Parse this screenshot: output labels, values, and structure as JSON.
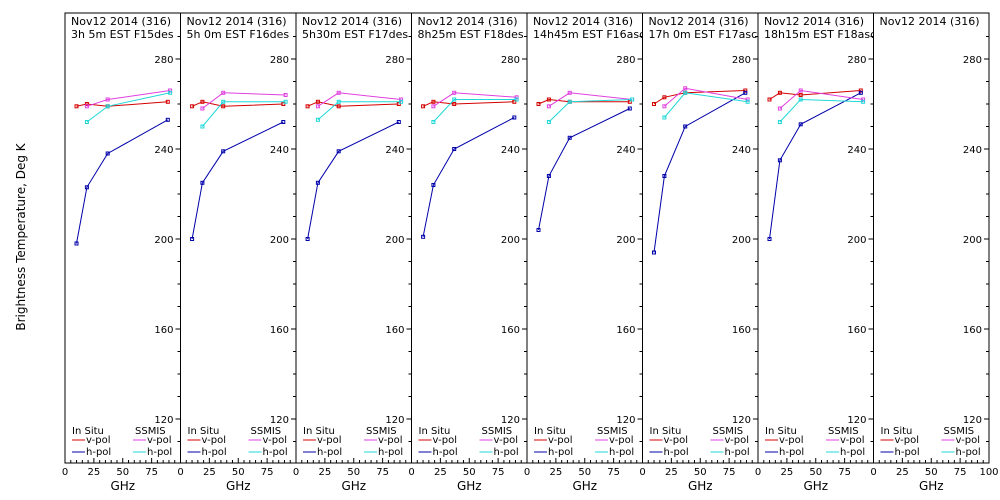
{
  "figure": {
    "ylabel": "Brightness Temperature, Deg K",
    "xlabel": "GHz"
  },
  "legend": {
    "in_situ": "In Situ",
    "ssmis": "SSMIS",
    "v_pol": "v-pol",
    "h_pol": "h-pol"
  },
  "colors": {
    "insitu_v": "#d40000",
    "insitu_h": "#0000aa",
    "ssmis_v": "#e040e0",
    "ssmis_h": "#20d8d8",
    "frame": "#000000"
  },
  "chart_data": [
    {
      "type": "line",
      "title_line1": "Nov12 2014 (316)",
      "title_line2": "3h 5m  EST F15des",
      "x": [
        10,
        19,
        37,
        85
      ],
      "xlim": [
        0,
        100
      ],
      "ylim": [
        100,
        290
      ],
      "x_ticks": [
        0,
        25,
        50,
        75,
        100
      ],
      "y_ticks": [
        120,
        160,
        200,
        240,
        280
      ],
      "xlabel": "GHz",
      "series": [
        {
          "name": "In Situ v-pol",
          "x": [
            10,
            19,
            37,
            89
          ],
          "values": [
            259,
            260,
            259,
            261
          ]
        },
        {
          "name": "In Situ h-pol",
          "x": [
            10,
            19,
            37,
            89
          ],
          "values": [
            198,
            223,
            238,
            253
          ]
        },
        {
          "name": "SSMIS v-pol",
          "x": [
            19,
            37,
            91
          ],
          "values": [
            259,
            262,
            266
          ]
        },
        {
          "name": "SSMIS h-pol",
          "x": [
            19,
            37,
            91
          ],
          "values": [
            252,
            259,
            265
          ]
        }
      ]
    },
    {
      "type": "line",
      "title_line1": "Nov12 2014 (316)",
      "title_line2": "5h 0m  EST F16des",
      "x": [
        10,
        19,
        37,
        85
      ],
      "xlim": [
        0,
        100
      ],
      "ylim": [
        100,
        290
      ],
      "x_ticks": [
        0,
        25,
        50,
        75,
        100
      ],
      "y_ticks": [
        120,
        160,
        200,
        240,
        280
      ],
      "xlabel": "GHz",
      "series": [
        {
          "name": "In Situ v-pol",
          "x": [
            10,
            19,
            37,
            89
          ],
          "values": [
            259,
            261,
            259,
            260
          ]
        },
        {
          "name": "In Situ h-pol",
          "x": [
            10,
            19,
            37,
            89
          ],
          "values": [
            200,
            225,
            239,
            252
          ]
        },
        {
          "name": "SSMIS v-pol",
          "x": [
            19,
            37,
            91
          ],
          "values": [
            258,
            265,
            264
          ]
        },
        {
          "name": "SSMIS h-pol",
          "x": [
            19,
            37,
            91
          ],
          "values": [
            250,
            261,
            261
          ]
        }
      ]
    },
    {
      "type": "line",
      "title_line1": "Nov12 2014 (316)",
      "title_line2": "5h30m  EST F17des",
      "x": [
        10,
        19,
        37,
        85
      ],
      "xlim": [
        0,
        100
      ],
      "ylim": [
        100,
        290
      ],
      "x_ticks": [
        0,
        25,
        50,
        75,
        100
      ],
      "y_ticks": [
        120,
        160,
        200,
        240,
        280
      ],
      "xlabel": "GHz",
      "series": [
        {
          "name": "In Situ v-pol",
          "x": [
            10,
            19,
            37,
            89
          ],
          "values": [
            259,
            261,
            259,
            260
          ]
        },
        {
          "name": "In Situ h-pol",
          "x": [
            10,
            19,
            37,
            89
          ],
          "values": [
            200,
            225,
            239,
            252
          ]
        },
        {
          "name": "SSMIS v-pol",
          "x": [
            19,
            37,
            91
          ],
          "values": [
            259,
            265,
            262
          ]
        },
        {
          "name": "SSMIS h-pol",
          "x": [
            19,
            37,
            91
          ],
          "values": [
            253,
            261,
            261
          ]
        }
      ]
    },
    {
      "type": "line",
      "title_line1": "Nov12 2014 (316)",
      "title_line2": "8h25m  EST F18des",
      "x": [
        10,
        19,
        37,
        85
      ],
      "xlim": [
        0,
        100
      ],
      "ylim": [
        100,
        290
      ],
      "x_ticks": [
        0,
        25,
        50,
        75,
        100
      ],
      "y_ticks": [
        120,
        160,
        200,
        240,
        280
      ],
      "xlabel": "GHz",
      "series": [
        {
          "name": "In Situ v-pol",
          "x": [
            10,
            19,
            37,
            89
          ],
          "values": [
            259,
            261,
            260,
            261
          ]
        },
        {
          "name": "In Situ h-pol",
          "x": [
            10,
            19,
            37,
            89
          ],
          "values": [
            201,
            224,
            240,
            254
          ]
        },
        {
          "name": "SSMIS v-pol",
          "x": [
            19,
            37,
            91
          ],
          "values": [
            259,
            265,
            263
          ]
        },
        {
          "name": "SSMIS h-pol",
          "x": [
            19,
            37,
            91
          ],
          "values": [
            252,
            262,
            262
          ]
        }
      ]
    },
    {
      "type": "line",
      "title_line1": "Nov12 2014 (316)",
      "title_line2": "14h45m  EST F16asc",
      "x": [
        10,
        19,
        37,
        85
      ],
      "xlim": [
        0,
        100
      ],
      "ylim": [
        100,
        290
      ],
      "x_ticks": [
        0,
        25,
        50,
        75,
        100
      ],
      "y_ticks": [
        120,
        160,
        200,
        240,
        280
      ],
      "xlabel": "GHz",
      "series": [
        {
          "name": "In Situ v-pol",
          "x": [
            10,
            19,
            37,
            89
          ],
          "values": [
            260,
            262,
            261,
            261
          ]
        },
        {
          "name": "In Situ h-pol",
          "x": [
            10,
            19,
            37,
            89
          ],
          "values": [
            204,
            228,
            245,
            258
          ]
        },
        {
          "name": "SSMIS v-pol",
          "x": [
            19,
            37,
            91
          ],
          "values": [
            259,
            265,
            262
          ]
        },
        {
          "name": "SSMIS h-pol",
          "x": [
            19,
            37,
            91
          ],
          "values": [
            252,
            261,
            262
          ]
        }
      ]
    },
    {
      "type": "line",
      "title_line1": "Nov12 2014 (316)",
      "title_line2": "17h 0m  EST F17asc",
      "x": [
        10,
        19,
        37,
        85
      ],
      "xlim": [
        0,
        100
      ],
      "ylim": [
        100,
        290
      ],
      "x_ticks": [
        0,
        25,
        50,
        75,
        100
      ],
      "y_ticks": [
        120,
        160,
        200,
        240,
        280
      ],
      "xlabel": "GHz",
      "series": [
        {
          "name": "In Situ v-pol",
          "x": [
            10,
            19,
            37,
            89
          ],
          "values": [
            260,
            263,
            265,
            266
          ]
        },
        {
          "name": "In Situ h-pol",
          "x": [
            10,
            19,
            37,
            89
          ],
          "values": [
            194,
            228,
            250,
            265
          ]
        },
        {
          "name": "SSMIS v-pol",
          "x": [
            19,
            37,
            91
          ],
          "values": [
            259,
            267,
            262
          ]
        },
        {
          "name": "SSMIS h-pol",
          "x": [
            19,
            37,
            91
          ],
          "values": [
            254,
            265,
            261
          ]
        }
      ]
    },
    {
      "type": "line",
      "title_line1": "Nov12 2014 (316)",
      "title_line2": "18h15m  EST F18asc",
      "x": [
        10,
        19,
        37,
        85
      ],
      "xlim": [
        0,
        100
      ],
      "ylim": [
        100,
        290
      ],
      "x_ticks": [
        0,
        25,
        50,
        75,
        100
      ],
      "y_ticks": [
        120,
        160,
        200,
        240,
        280
      ],
      "xlabel": "GHz",
      "series": [
        {
          "name": "In Situ v-pol",
          "x": [
            10,
            19,
            37,
            89
          ],
          "values": [
            262,
            265,
            264,
            266
          ]
        },
        {
          "name": "In Situ h-pol",
          "x": [
            10,
            19,
            37,
            89
          ],
          "values": [
            200,
            235,
            251,
            265
          ]
        },
        {
          "name": "SSMIS v-pol",
          "x": [
            19,
            37,
            91
          ],
          "values": [
            258,
            266,
            262
          ]
        },
        {
          "name": "SSMIS h-pol",
          "x": [
            19,
            37,
            91
          ],
          "values": [
            252,
            262,
            261
          ]
        }
      ]
    },
    {
      "type": "line",
      "title_line1": "Nov12 2014 (316)",
      "title_line2": "",
      "x": [],
      "xlim": [
        0,
        100
      ],
      "ylim": [
        100,
        290
      ],
      "x_ticks": [
        0,
        25,
        50,
        75,
        100
      ],
      "y_ticks": [
        120,
        160,
        200,
        240,
        280
      ],
      "xlabel": "GHz",
      "series": []
    }
  ]
}
